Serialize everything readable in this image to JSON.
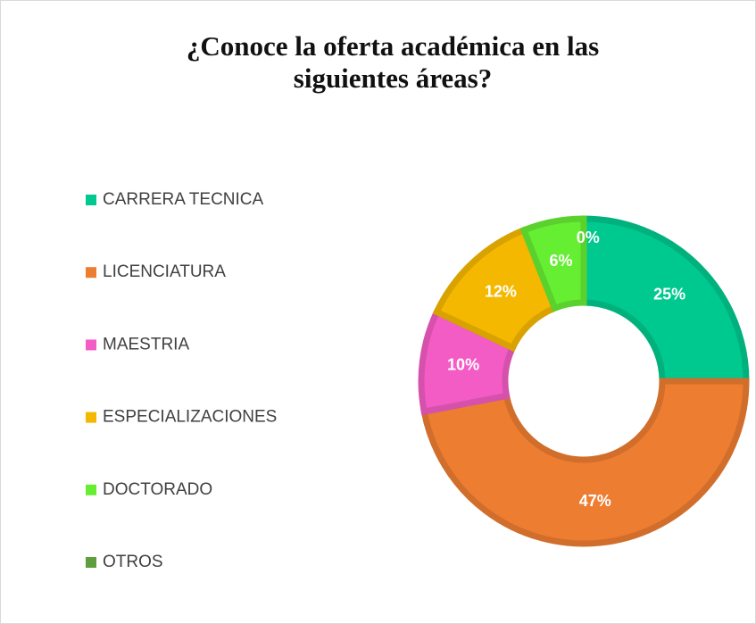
{
  "chart_data": {
    "type": "donut",
    "title": "¿Conoce la oferta académica en las siguientes áreas?",
    "categories": [
      "CARRERA TECNICA",
      "LICENCIATURA",
      "MAESTRIA",
      "ESPECIALIZACIONES",
      "DOCTORADO",
      "OTROS"
    ],
    "values": [
      25,
      47,
      10,
      12,
      6,
      0
    ],
    "value_labels": [
      "25%",
      "47%",
      "10%",
      "12%",
      "6%",
      "0%"
    ],
    "colors": [
      "#00c98f",
      "#ed7d31",
      "#f35cc4",
      "#f5b800",
      "#66ee33",
      "#5f9e3e"
    ],
    "legend": "left"
  }
}
